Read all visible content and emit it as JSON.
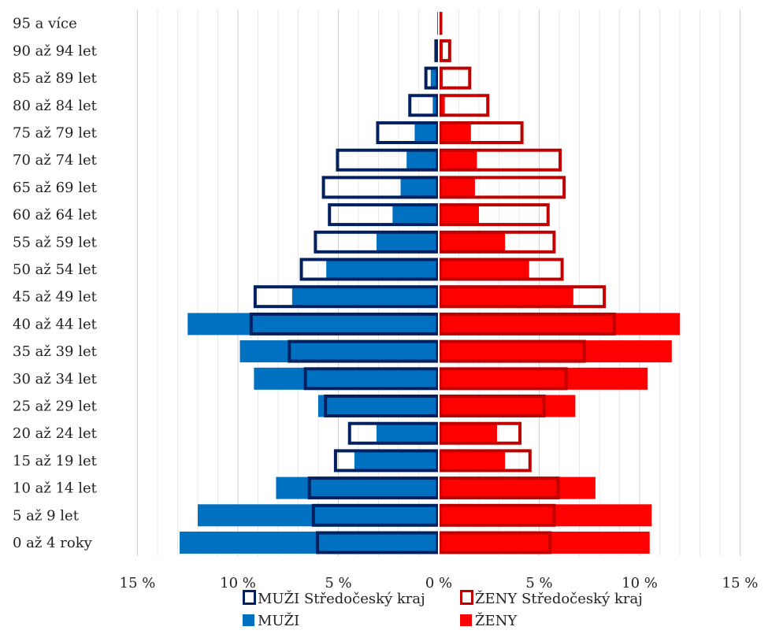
{
  "chart_data": {
    "type": "bar",
    "orientation": "horizontal-population-pyramid",
    "categories": [
      "0 až 4 roky",
      "5 až 9 let",
      "10 až 14 let",
      "15 až 19 let",
      "20 až 24 let",
      "25 až 29 let",
      "30 až 34 let",
      "35 až 39 let",
      "40 až 44 let",
      "45 až 49 let",
      "50 až 54 let",
      "55 až 59 let",
      "60 až 64 let",
      "65 až 69 let",
      "70 až 74 let",
      "75 až 79 let",
      "80 až 84 let",
      "85 až 89 let",
      "90 až 94 let",
      "95 a více"
    ],
    "x_ticks": [
      "15 %",
      "10 %",
      "5 %",
      "0 %",
      "5 %",
      "10 %",
      "15 %"
    ],
    "x_range": [
      -15,
      15
    ],
    "grid": true,
    "legend_position": "bottom",
    "series": [
      {
        "name": "MUŽI",
        "side": "left",
        "style": "filled",
        "color": "#0070c0",
        "values": [
          12.9,
          12.0,
          8.1,
          4.2,
          3.1,
          6.0,
          9.2,
          9.9,
          12.5,
          7.3,
          5.6,
          3.1,
          2.3,
          1.9,
          1.6,
          1.2,
          0.3,
          0.4,
          0.2,
          0.05
        ]
      },
      {
        "name": "ŽENY",
        "side": "right",
        "style": "filled",
        "color": "#ff0000",
        "values": [
          10.5,
          10.6,
          7.8,
          3.3,
          2.9,
          6.8,
          10.4,
          11.6,
          12.0,
          6.7,
          4.5,
          3.3,
          2.0,
          1.8,
          1.9,
          1.6,
          0.3,
          0.2,
          0.2,
          0.05
        ]
      },
      {
        "name": "MUŽI Středočeský kraj",
        "side": "left",
        "style": "outline",
        "color": "#002060",
        "values": [
          6.1,
          6.3,
          6.5,
          5.2,
          4.5,
          5.7,
          6.7,
          7.5,
          9.4,
          9.2,
          6.9,
          6.2,
          5.5,
          5.8,
          5.1,
          3.1,
          1.5,
          0.7,
          0.2,
          0.05
        ]
      },
      {
        "name": "ŽENY Středočeský kraj",
        "side": "right",
        "style": "outline",
        "color": "#c00000",
        "values": [
          5.6,
          5.8,
          6.0,
          4.6,
          4.1,
          5.3,
          6.4,
          7.3,
          8.8,
          8.3,
          6.2,
          5.8,
          5.5,
          6.3,
          6.1,
          4.2,
          2.5,
          1.6,
          0.6,
          0.1
        ]
      }
    ]
  }
}
